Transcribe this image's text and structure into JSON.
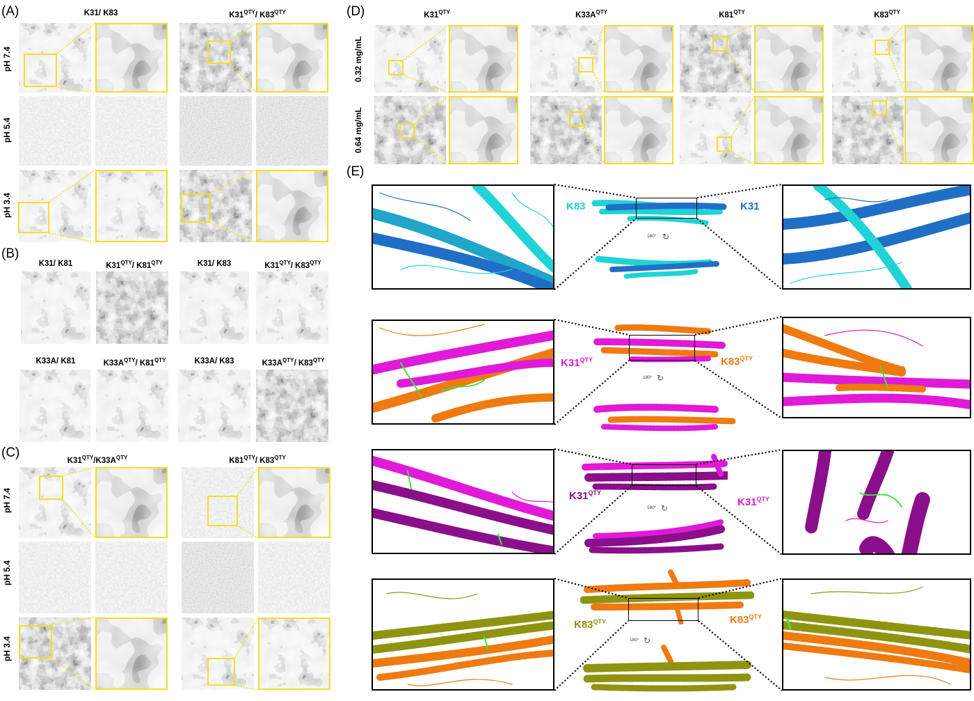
{
  "panels": {
    "A": {
      "label": "(A)",
      "headers": [
        "K31/ K83",
        "K31",
        "QTY",
        "/ K83",
        "QTY"
      ],
      "rows": [
        "pH 7.4",
        "pH 5.4",
        "pH 3.4"
      ]
    },
    "B": {
      "label": "(B)",
      "row1": [
        {
          "t": "K31/ K81"
        },
        {
          "a": "K31",
          "s1": "QTY",
          "b": "/ K81",
          "s2": "QTY"
        },
        {
          "t": "K31/ K83"
        },
        {
          "a": "K31",
          "s1": "QTY",
          "b": "/ K83",
          "s2": "QTY"
        }
      ],
      "row2": [
        {
          "t": "K33A/ K81"
        },
        {
          "a": "K33A",
          "s1": "QTY",
          "b": "/ K81",
          "s2": "QTY"
        },
        {
          "t": "K33A/ K83"
        },
        {
          "a": "K33A",
          "s1": "QTY",
          "b": "/ K83",
          "s2": "QTY"
        }
      ]
    },
    "C": {
      "label": "(C)",
      "headers": [
        {
          "a": "K31",
          "s1": "QTY",
          "b": "/K33A",
          "s2": "QTY"
        },
        {
          "a": "K81",
          "s1": "QTY",
          "b": "/ K83",
          "s2": "QTY"
        }
      ],
      "rows": [
        "pH 7.4",
        "pH 5.4",
        "pH 3.4"
      ]
    },
    "D": {
      "label": "(D)",
      "headers": [
        {
          "a": "K31",
          "s": "QTY"
        },
        {
          "a": "K33A",
          "s": "QTY"
        },
        {
          "a": "K81",
          "s": "QTY"
        },
        {
          "a": "K83",
          "s": "QTY"
        }
      ],
      "rows": [
        "0.32 mg/mL",
        "0.64 mg/mL"
      ]
    },
    "E": {
      "label": "(E)",
      "rotation": "180°",
      "rows": [
        {
          "left": "K83",
          "right": "K31",
          "left_sup": "",
          "right_sup": "",
          "left_color": "#1fd3d6",
          "right_color": "#1f6fc6"
        },
        {
          "left": "K31",
          "right": "K83",
          "left_sup": "QTY",
          "right_sup": "QTY",
          "left_color": "#e01ad8",
          "right_color": "#ef7a10"
        },
        {
          "left": "K31",
          "right": "K31",
          "left_sup": "QTY",
          "right_sup": "QTY",
          "left_color": "#8a0f8a",
          "right_color": "#e01ad8"
        },
        {
          "left": "K83",
          "right": "K83",
          "left_sup": "QTY",
          "right_sup": "QTY",
          "left_color": "#8f9410",
          "right_color": "#ef7a10"
        }
      ]
    }
  },
  "colors": {
    "highlight_yellow": "#f0e026",
    "k31": "#1f6fc6",
    "k83": "#1fd3d6",
    "k31_qty": "#e01ad8",
    "k83_qty": "#ef7a10",
    "k31_qty_dark": "#8a0f8a",
    "k83_qty_olive": "#8f9410",
    "crosslink_green": "#3ee53e"
  }
}
